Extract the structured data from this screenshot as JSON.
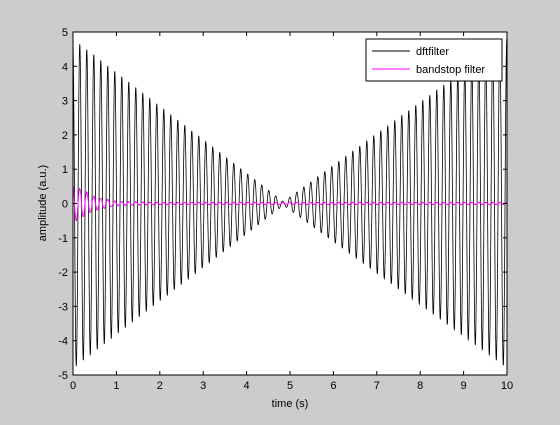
{
  "chart_data": {
    "type": "line",
    "title": "",
    "xlabel": "time (s)",
    "ylabel": "amplitude (a.u.)",
    "xlim": [
      0,
      10
    ],
    "ylim": [
      -5,
      5
    ],
    "xticks": [
      0,
      1,
      2,
      3,
      4,
      5,
      6,
      7,
      8,
      9,
      10
    ],
    "yticks": [
      -5,
      -4,
      -3,
      -2,
      -1,
      0,
      1,
      2,
      3,
      4,
      5
    ],
    "grid": false,
    "legend_position": "top-right",
    "series": [
      {
        "name": "dftfilter",
        "color": "#000000",
        "frequency_hz": 6.2,
        "envelope": [
          [
            0,
            4.8
          ],
          [
            4.85,
            0.05
          ],
          [
            10,
            4.8
          ]
        ]
      },
      {
        "name": "bandstop filter",
        "color": "#ff00ff",
        "frequency_hz": 6.2,
        "envelope": [
          [
            0,
            0.55
          ],
          [
            0.15,
            0.45
          ],
          [
            0.5,
            0.2
          ],
          [
            1.0,
            0.06
          ],
          [
            2.0,
            0.03
          ],
          [
            5.0,
            0.03
          ],
          [
            10,
            0.03
          ]
        ]
      }
    ]
  }
}
